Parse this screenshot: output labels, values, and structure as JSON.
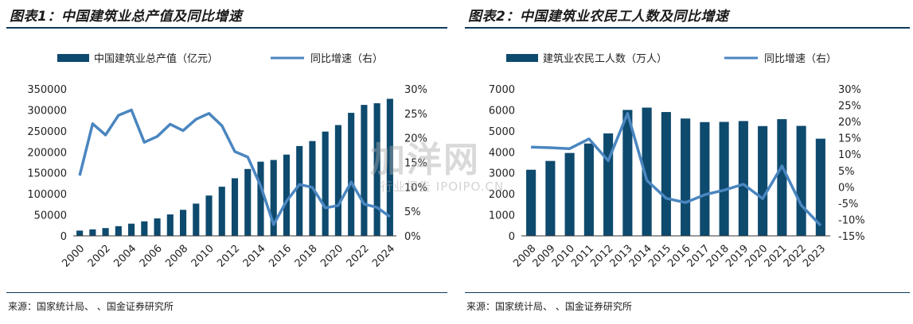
{
  "panels": [
    {
      "title": "图表1：中国建筑业总产值及同比增速",
      "source": "来源：国家统计局、 、国金证券研究所"
    },
    {
      "title": "图表2：中国建筑业农民工人数及同比增速",
      "source": "来源：国家统计局、 、国金证券研究所"
    }
  ],
  "watermark": {
    "main": "加洋网",
    "sub": "行业报告 IPOIPO.CN"
  },
  "chart_data": [
    {
      "type": "bar",
      "x": [
        2000,
        2001,
        2002,
        2003,
        2004,
        2005,
        2006,
        2007,
        2008,
        2009,
        2010,
        2011,
        2012,
        2013,
        2014,
        2015,
        2016,
        2017,
        2018,
        2019,
        2020,
        2021,
        2022,
        2023,
        2024
      ],
      "x_tick_labels": [
        "2000",
        "2002",
        "2004",
        "2006",
        "2008",
        "2010",
        "2012",
        "2014",
        "2016",
        "2018",
        "2020",
        "2022",
        "2024"
      ],
      "series": [
        {
          "name": "中国建筑业总产值（亿元）",
          "kind": "bar",
          "axis": "left",
          "color": "#0e4a6e",
          "values": [
            12498,
            15361,
            18527,
            23084,
            29021,
            34552,
            41557,
            51044,
            62037,
            76808,
            96031,
            117060,
            137218,
            159313,
            176713,
            180757,
            193567,
            213954,
            225817,
            248446,
            263947,
            293079,
            311980,
            315912,
            326501
          ]
        },
        {
          "name": "同比增速（右）",
          "kind": "line",
          "axis": "right",
          "color": "#4a86c0",
          "values": [
            12.3,
            22.9,
            20.6,
            24.6,
            25.7,
            19.1,
            20.3,
            22.8,
            21.5,
            23.8,
            25.0,
            22.5,
            17.2,
            16.1,
            10.2,
            2.3,
            7.1,
            10.5,
            9.9,
            5.7,
            6.2,
            11.0,
            6.5,
            5.8,
            3.9
          ]
        }
      ],
      "y_left": {
        "ylim": [
          0,
          350000
        ],
        "ticks": [
          "0",
          "50000",
          "100000",
          "150000",
          "200000",
          "250000",
          "300000",
          "350000"
        ]
      },
      "y_right": {
        "ylim": [
          0,
          30
        ],
        "ticks": [
          "0%",
          "5%",
          "10%",
          "15%",
          "20%",
          "25%",
          "30%"
        ]
      },
      "legend": "top"
    },
    {
      "type": "bar",
      "x": [
        2008,
        2009,
        2010,
        2011,
        2012,
        2013,
        2014,
        2015,
        2016,
        2017,
        2018,
        2019,
        2020,
        2021,
        2022,
        2023
      ],
      "x_tick_labels": [
        "2008",
        "2009",
        "2010",
        "2011",
        "2012",
        "2013",
        "2014",
        "2015",
        "2016",
        "2017",
        "2018",
        "2019",
        "2020",
        "2021",
        "2022",
        "2023"
      ],
      "series": [
        {
          "name": "建筑业农民工人数（万人）",
          "kind": "bar",
          "axis": "left",
          "color": "#0e4a6e",
          "values": [
            3150,
            3570,
            3950,
            4400,
            4880,
            6000,
            6110,
            5900,
            5590,
            5420,
            5430,
            5470,
            5230,
            5560,
            5240,
            4630
          ]
        },
        {
          "name": "同比增速（右）",
          "kind": "line",
          "axis": "right",
          "color": "#4a86c0",
          "values": [
            12.2,
            12.0,
            11.7,
            14.7,
            8.0,
            22.5,
            2.0,
            -3.5,
            -4.8,
            -2.4,
            -1.0,
            0.8,
            -3.6,
            6.4,
            -5.6,
            -11.8
          ]
        }
      ],
      "y_left": {
        "ylim": [
          0,
          7000
        ],
        "ticks": [
          "0",
          "1000",
          "2000",
          "3000",
          "4000",
          "5000",
          "6000",
          "7000"
        ]
      },
      "y_right": {
        "ylim": [
          -15,
          30
        ],
        "ticks": [
          "-15%",
          "-10%",
          "-5%",
          "0%",
          "5%",
          "10%",
          "15%",
          "20%",
          "25%",
          "30%"
        ]
      },
      "legend": "top"
    }
  ]
}
